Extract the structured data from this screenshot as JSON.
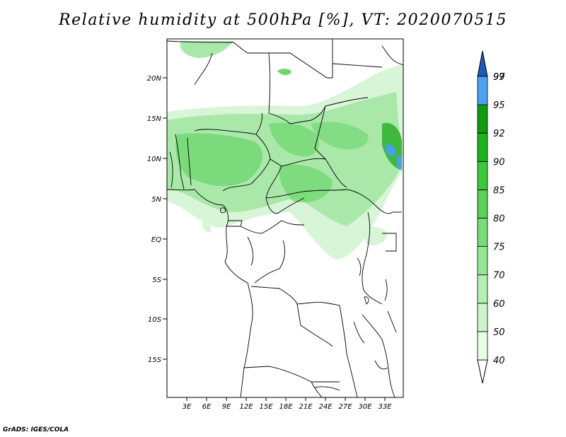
{
  "title": "Relative humidity at 500hPa [%], VT: 2020070515",
  "footer": "GrADS: IGES/COLA",
  "map": {
    "lat_labels": [
      "20N",
      "15N",
      "10N",
      "5N",
      "EQ",
      "5S",
      "10S",
      "15S"
    ],
    "lon_labels": [
      "3E",
      "6E",
      "9E",
      "12E",
      "15E",
      "18E",
      "21E",
      "24E",
      "27E",
      "30E",
      "33E"
    ]
  },
  "colorbar": {
    "levels": [
      "40",
      "50",
      "60",
      "70",
      "75",
      "80",
      "85",
      "90",
      "92",
      "95",
      "97",
      "99"
    ],
    "colors": [
      "#ffffff",
      "#e6ffe6",
      "#cdf5cd",
      "#b4f0b4",
      "#96e696",
      "#78dc78",
      "#5ad25a",
      "#3cc83c",
      "#1eb41e",
      "#0f9b0f",
      "#4ba3f0",
      "#2d82dc",
      "#1e5ab4"
    ]
  },
  "humidity_colors": {
    "light": "#d8f5d8",
    "medium": "#a9e8a9",
    "strong": "#6cd66c",
    "intense": "#3fb83f",
    "very_high": "#4a9fe8"
  }
}
